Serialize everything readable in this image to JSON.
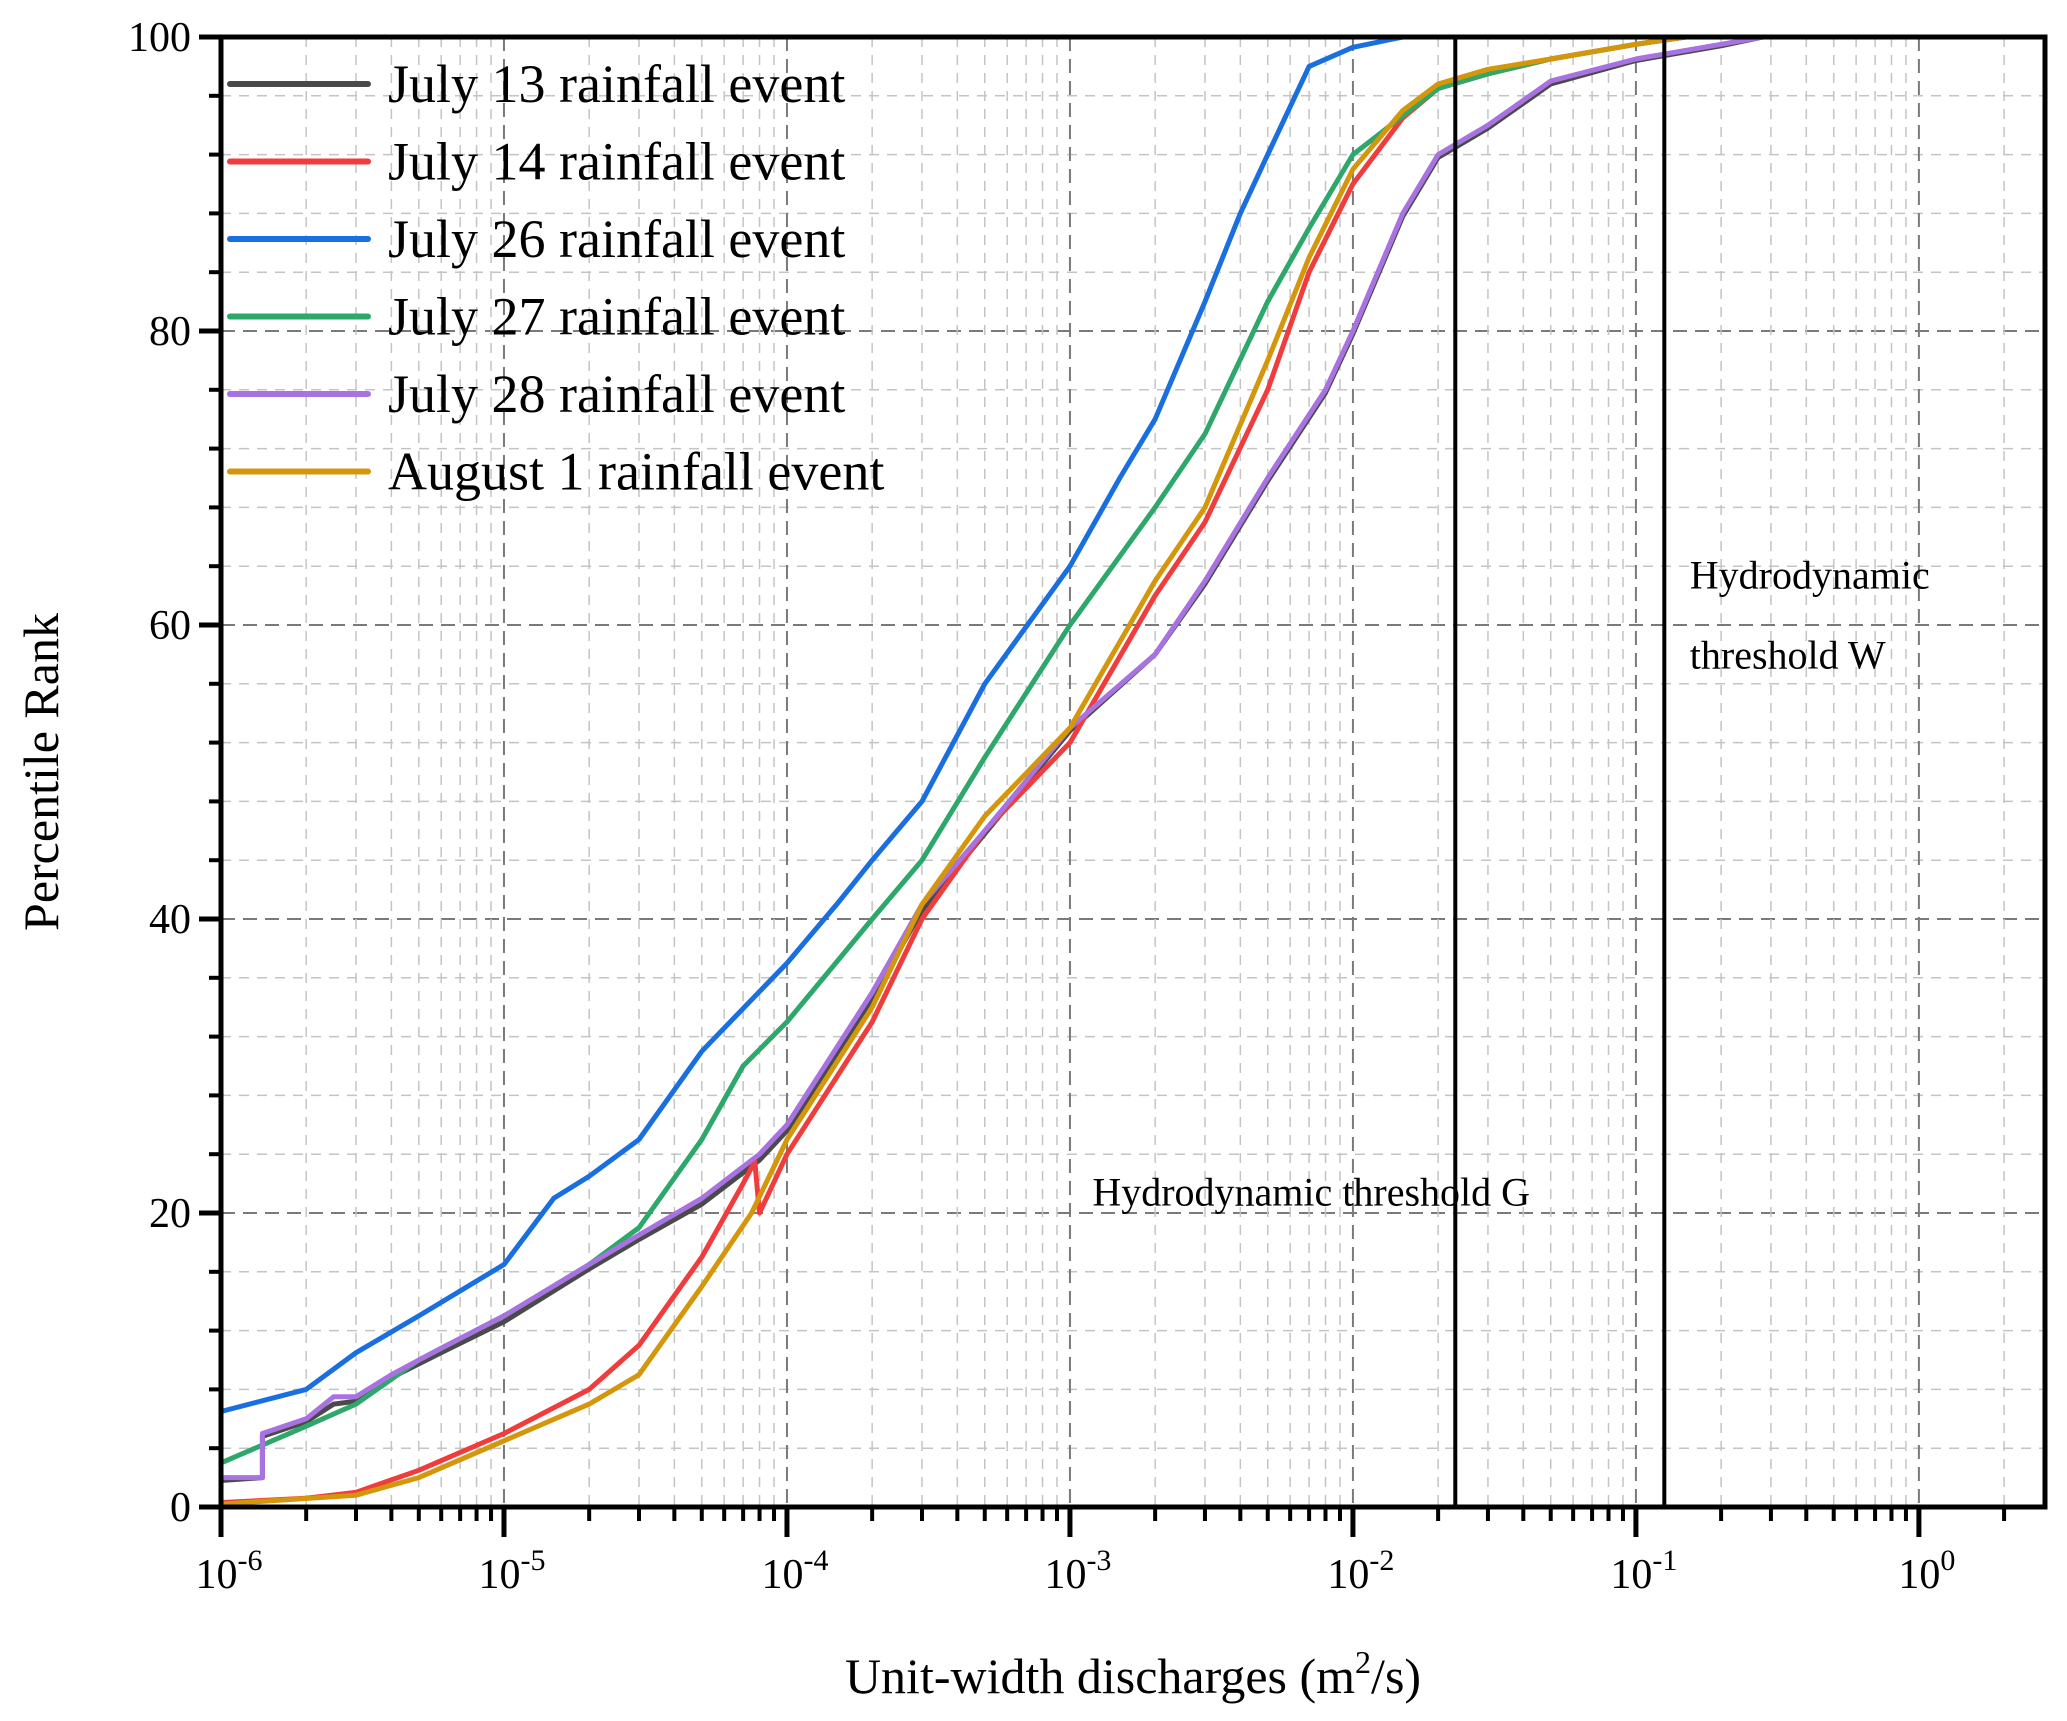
{
  "chart_data": {
    "type": "line",
    "title": "",
    "xlabel": "Unit-width discharges (m",
    "xlabel_sup": "2",
    "xlabel_tail": "/s)",
    "ylabel": "Percentile Rank",
    "xscale": "log",
    "xlim": [
      1e-06,
      2.79
    ],
    "ylim": [
      0,
      100
    ],
    "grid": true,
    "legend_position": "top-left",
    "x_ticks": [
      {
        "value": 1e-06,
        "base": "10",
        "exp": "-6"
      },
      {
        "value": 1e-05,
        "base": "10",
        "exp": "-5"
      },
      {
        "value": 0.0001,
        "base": "10",
        "exp": "-4"
      },
      {
        "value": 0.001,
        "base": "10",
        "exp": "-3"
      },
      {
        "value": 0.01,
        "base": "10",
        "exp": "-2"
      },
      {
        "value": 0.1,
        "base": "10",
        "exp": "-1"
      },
      {
        "value": 1,
        "base": "10",
        "exp": "0"
      }
    ],
    "y_ticks": [
      {
        "value": 0,
        "label": "0"
      },
      {
        "value": 20,
        "label": "20"
      },
      {
        "value": 40,
        "label": "40"
      },
      {
        "value": 60,
        "label": "60"
      },
      {
        "value": 80,
        "label": "80"
      },
      {
        "value": 100,
        "label": "100"
      }
    ],
    "thresholds": [
      {
        "name": "Hydrodynamic threshold G",
        "x": 0.023,
        "label_lines": [
          "Hydrodynamic threshold G"
        ],
        "label_anchor_x": 0.0012,
        "label_y": 20.5
      },
      {
        "name": "Hydrodynamic threshold W",
        "x": 0.126,
        "label_lines": [
          "Hydrodynamic",
          "threshold W"
        ],
        "label_anchor_x": 0.155,
        "label_y": 62.5
      }
    ],
    "series": [
      {
        "name": "July 13 rainfall event",
        "color": "#4a4a4a",
        "points": [
          [
            1e-06,
            1.8
          ],
          [
            1.4e-06,
            2.0
          ],
          [
            1.4e-06,
            4.8
          ],
          [
            2e-06,
            5.8
          ],
          [
            2.5e-06,
            7.0
          ],
          [
            3e-06,
            7.2
          ],
          [
            4e-06,
            8.8
          ],
          [
            6e-06,
            10.5
          ],
          [
            1e-05,
            12.6
          ],
          [
            2e-05,
            16.2
          ],
          [
            3e-05,
            18.2
          ],
          [
            5e-05,
            20.6
          ],
          [
            8e-05,
            23.6
          ],
          [
            0.0001,
            25.6
          ],
          [
            0.0002,
            34.6
          ],
          [
            0.0003,
            40.6
          ],
          [
            0.0005,
            45.8
          ],
          [
            0.001,
            52.8
          ],
          [
            0.002,
            58.0
          ],
          [
            0.003,
            62.8
          ],
          [
            0.005,
            69.8
          ],
          [
            0.008,
            75.8
          ],
          [
            0.01,
            79.8
          ],
          [
            0.015,
            87.8
          ],
          [
            0.02,
            91.8
          ],
          [
            0.03,
            93.8
          ],
          [
            0.05,
            96.8
          ],
          [
            0.1,
            98.4
          ],
          [
            0.2,
            99.4
          ],
          [
            0.28,
            100
          ]
        ]
      },
      {
        "name": "July 14 rainfall event",
        "color": "#f03c3c",
        "points": [
          [
            1e-06,
            0.3
          ],
          [
            2e-06,
            0.6
          ],
          [
            3e-06,
            1.0
          ],
          [
            5e-06,
            2.5
          ],
          [
            1e-05,
            5.0
          ],
          [
            2e-05,
            8.0
          ],
          [
            3e-05,
            11.0
          ],
          [
            5e-05,
            17.0
          ],
          [
            7e-05,
            22.0
          ],
          [
            7.7e-05,
            23.5
          ],
          [
            8e-05,
            20.0
          ],
          [
            0.0001,
            24.0
          ],
          [
            0.0002,
            33.0
          ],
          [
            0.0003,
            40.0
          ],
          [
            0.0005,
            46.0
          ],
          [
            0.001,
            52.0
          ],
          [
            0.002,
            62.0
          ],
          [
            0.003,
            67.0
          ],
          [
            0.005,
            76.0
          ],
          [
            0.007,
            84.0
          ],
          [
            0.01,
            90.0
          ],
          [
            0.015,
            94.5
          ],
          [
            0.02,
            96.5
          ],
          [
            0.03,
            97.5
          ],
          [
            0.05,
            98.5
          ],
          [
            0.1,
            99.5
          ],
          [
            0.15,
            100
          ]
        ]
      },
      {
        "name": "July 26 rainfall event",
        "color": "#1a6fe0",
        "points": [
          [
            1e-06,
            6.5
          ],
          [
            2e-06,
            8.0
          ],
          [
            3e-06,
            10.5
          ],
          [
            5e-06,
            13.0
          ],
          [
            1e-05,
            16.5
          ],
          [
            1.5e-05,
            21.0
          ],
          [
            2e-05,
            22.5
          ],
          [
            3e-05,
            25.0
          ],
          [
            5e-05,
            31.0
          ],
          [
            0.0001,
            37.0
          ],
          [
            0.00015,
            41.0
          ],
          [
            0.0002,
            44.0
          ],
          [
            0.0003,
            48.0
          ],
          [
            0.0005,
            56.0
          ],
          [
            0.001,
            64.0
          ],
          [
            0.0015,
            70.0
          ],
          [
            0.002,
            74.0
          ],
          [
            0.003,
            82.0
          ],
          [
            0.004,
            88.0
          ],
          [
            0.005,
            92.0
          ],
          [
            0.007,
            98.0
          ],
          [
            0.01,
            99.3
          ],
          [
            0.015,
            100
          ]
        ]
      },
      {
        "name": "July 27 rainfall event",
        "color": "#2ea86a",
        "points": [
          [
            1e-06,
            3.0
          ],
          [
            2e-06,
            5.5
          ],
          [
            3e-06,
            7.0
          ],
          [
            5e-06,
            10.0
          ],
          [
            1e-05,
            13.0
          ],
          [
            2e-05,
            16.5
          ],
          [
            3e-05,
            19.0
          ],
          [
            5e-05,
            25.0
          ],
          [
            7e-05,
            30.0
          ],
          [
            0.0001,
            33.0
          ],
          [
            0.0002,
            40.0
          ],
          [
            0.0003,
            44.0
          ],
          [
            0.0005,
            51.0
          ],
          [
            0.001,
            60.0
          ],
          [
            0.002,
            68.0
          ],
          [
            0.003,
            73.0
          ],
          [
            0.005,
            82.0
          ],
          [
            0.007,
            87.0
          ],
          [
            0.01,
            92.0
          ],
          [
            0.02,
            96.5
          ],
          [
            0.03,
            97.5
          ],
          [
            0.05,
            98.5
          ],
          [
            0.1,
            99.5
          ],
          [
            0.15,
            100
          ]
        ]
      },
      {
        "name": "July 28 rainfall event",
        "color": "#a872e0",
        "points": [
          [
            1e-06,
            2.0
          ],
          [
            1.4e-06,
            2.0
          ],
          [
            1.4e-06,
            5.0
          ],
          [
            2e-06,
            6.0
          ],
          [
            2.5e-06,
            7.5
          ],
          [
            3e-06,
            7.5
          ],
          [
            4e-06,
            9.0
          ],
          [
            6e-06,
            10.8
          ],
          [
            1e-05,
            13.0
          ],
          [
            2e-05,
            16.5
          ],
          [
            3e-05,
            18.5
          ],
          [
            5e-05,
            21.0
          ],
          [
            8e-05,
            24.0
          ],
          [
            0.0001,
            26.0
          ],
          [
            0.0002,
            35.0
          ],
          [
            0.0003,
            41.0
          ],
          [
            0.0005,
            46.0
          ],
          [
            0.001,
            53.0
          ],
          [
            0.002,
            58.0
          ],
          [
            0.003,
            63.0
          ],
          [
            0.005,
            70.0
          ],
          [
            0.008,
            76.0
          ],
          [
            0.01,
            80.0
          ],
          [
            0.015,
            88.0
          ],
          [
            0.02,
            92.0
          ],
          [
            0.03,
            94.0
          ],
          [
            0.05,
            97.0
          ],
          [
            0.1,
            98.5
          ],
          [
            0.2,
            99.5
          ],
          [
            0.28,
            100
          ]
        ]
      },
      {
        "name": "August 1 rainfall event",
        "color": "#d4960a",
        "points": [
          [
            1e-06,
            0.2
          ],
          [
            3e-06,
            0.8
          ],
          [
            5e-06,
            2.0
          ],
          [
            1e-05,
            4.5
          ],
          [
            2e-05,
            7.0
          ],
          [
            3e-05,
            9.0
          ],
          [
            5e-05,
            15.0
          ],
          [
            7.5e-05,
            20.0
          ],
          [
            0.0001,
            25.0
          ],
          [
            0.0002,
            34.0
          ],
          [
            0.0003,
            41.0
          ],
          [
            0.0005,
            47.0
          ],
          [
            0.001,
            53.0
          ],
          [
            0.002,
            63.0
          ],
          [
            0.003,
            68.0
          ],
          [
            0.005,
            78.0
          ],
          [
            0.007,
            85.0
          ],
          [
            0.01,
            91.0
          ],
          [
            0.015,
            95.0
          ],
          [
            0.02,
            96.8
          ],
          [
            0.03,
            97.8
          ],
          [
            0.05,
            98.5
          ],
          [
            0.1,
            99.5
          ],
          [
            0.15,
            100
          ]
        ]
      }
    ]
  }
}
